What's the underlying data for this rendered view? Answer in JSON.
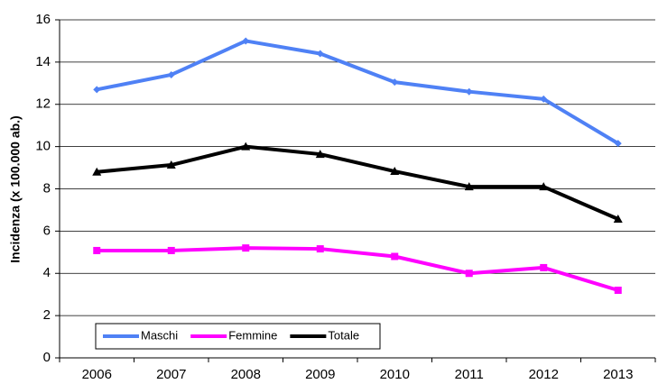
{
  "chart_data": {
    "type": "line",
    "y_label": "Incidenza (x 100.000 ab.)",
    "categories": [
      "2006",
      "2007",
      "2008",
      "2009",
      "2010",
      "2011",
      "2012",
      "2013"
    ],
    "series": [
      {
        "name": "Maschi",
        "color": "#4f81f5",
        "marker": "diamond",
        "values": [
          12.7,
          13.4,
          15.0,
          14.4,
          13.05,
          12.6,
          12.25,
          10.15
        ]
      },
      {
        "name": "Femmine",
        "color": "#ff00ff",
        "marker": "square",
        "values": [
          5.08,
          5.08,
          5.2,
          5.16,
          4.8,
          4.0,
          4.27,
          3.2
        ]
      },
      {
        "name": "Totale",
        "color": "#000000",
        "marker": "triangle",
        "values": [
          8.8,
          9.13,
          10.0,
          9.64,
          8.83,
          8.1,
          8.1,
          6.57
        ]
      }
    ],
    "ylim": [
      0,
      16
    ],
    "yticks": [
      0,
      2,
      4,
      6,
      8,
      10,
      12,
      14,
      16
    ],
    "grid": true,
    "legend": "lower left"
  }
}
